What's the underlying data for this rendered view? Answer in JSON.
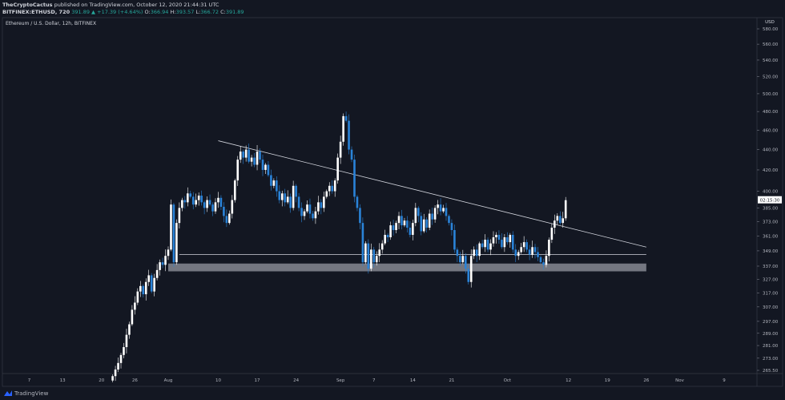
{
  "header": {
    "author": "TheCryptoCactus",
    "published": "published on TradingView.com, October 12, 2020 21:44:31 UTC",
    "symbol": "BITFINEX:ETHUSD, 720",
    "last": "391.89",
    "change": "+17.39 (+4.64%)",
    "o_label": "O:",
    "o": "366.94",
    "h_label": "H:",
    "h": "393.57",
    "l_label": "L:",
    "l": "366.72",
    "c_label": "C:",
    "c": "391.89"
  },
  "footer": {
    "brand": "TradingView"
  },
  "colors": {
    "background": "#131722",
    "up": "#ffffff",
    "down": "#2a83d8",
    "line": "#d1d4dc",
    "zone": "#9598a1"
  },
  "chart_data": {
    "type": "candlestick",
    "title": "Ethereum / U.S. Dollar, 12h, BITFINEX",
    "y_unit": "USD",
    "y_scale": "log",
    "ylim": [
      265.5,
      580
    ],
    "y_ticks": [
      "580.00",
      "560.00",
      "540.00",
      "520.00",
      "500.00",
      "480.00",
      "460.00",
      "440.00",
      "420.00",
      "400.00",
      "385.00",
      "373.00",
      "361.00",
      "349.00",
      "337.00",
      "327.00",
      "317.00",
      "307.00",
      "297.00",
      "289.00",
      "281.00",
      "273.00",
      "265.50"
    ],
    "countdown": "02:15:30",
    "x_ticks": [
      {
        "label": "7",
        "date": "2020-07-07"
      },
      {
        "label": "13",
        "date": "2020-07-13"
      },
      {
        "label": "20",
        "date": "2020-07-20"
      },
      {
        "label": "26",
        "date": "2020-07-26"
      },
      {
        "label": "Aug",
        "date": "2020-08-01"
      },
      {
        "label": "10",
        "date": "2020-08-10"
      },
      {
        "label": "17",
        "date": "2020-08-17"
      },
      {
        "label": "24",
        "date": "2020-08-24"
      },
      {
        "label": "Sep",
        "date": "2020-09-01"
      },
      {
        "label": "7",
        "date": "2020-09-07"
      },
      {
        "label": "14",
        "date": "2020-09-14"
      },
      {
        "label": "21",
        "date": "2020-09-21"
      },
      {
        "label": "Oct",
        "date": "2020-10-01"
      },
      {
        "label": "12",
        "date": "2020-10-12"
      },
      {
        "label": "19",
        "date": "2020-10-19"
      },
      {
        "label": "26",
        "date": "2020-10-26"
      },
      {
        "label": "Nov",
        "date": "2020-11-01"
      },
      {
        "label": "9",
        "date": "2020-11-09"
      }
    ],
    "first_candle": "2020-07-22",
    "interval_hours": 12,
    "closes": [
      262,
      266,
      270,
      275,
      280,
      288,
      295,
      305,
      310,
      318,
      322,
      316,
      325,
      330,
      318,
      328,
      334,
      340,
      338,
      345,
      350,
      388,
      340,
      372,
      385,
      392,
      390,
      398,
      395,
      388,
      392,
      396,
      390,
      385,
      392,
      388,
      382,
      390,
      394,
      386,
      378,
      372,
      380,
      392,
      410,
      430,
      438,
      432,
      440,
      428,
      432,
      425,
      438,
      430,
      420,
      425,
      415,
      405,
      410,
      400,
      392,
      398,
      390,
      395,
      385,
      405,
      395,
      385,
      378,
      382,
      388,
      380,
      376,
      382,
      390,
      385,
      395,
      400,
      405,
      400,
      410,
      432,
      448,
      475,
      470,
      440,
      430,
      395,
      385,
      372,
      340,
      355,
      335,
      350,
      340,
      345,
      350,
      355,
      362,
      360,
      370,
      366,
      372,
      378,
      370,
      374,
      368,
      362,
      372,
      385,
      378,
      365,
      375,
      368,
      380,
      375,
      385,
      388,
      382,
      385,
      378,
      372,
      366,
      350,
      345,
      340,
      345,
      335,
      325,
      345,
      350,
      345,
      355,
      352,
      358,
      350,
      355,
      360,
      362,
      358,
      352,
      360,
      356,
      362,
      350,
      345,
      348,
      352,
      356,
      350,
      346,
      352,
      348,
      344,
      340,
      338,
      345,
      358,
      368,
      374,
      378,
      372,
      376,
      391.89
    ],
    "drawings": [
      {
        "type": "trendline",
        "from": {
          "date": "2020-08-10",
          "price": 449
        },
        "to": {
          "date": "2020-10-26",
          "price": 352
        }
      },
      {
        "type": "horizontal",
        "from_date": "2020-08-03",
        "to_date": "2020-10-26",
        "price": 346
      },
      {
        "type": "zone",
        "from_date": "2020-08-01",
        "to_date": "2020-10-26",
        "price_low": 333,
        "price_high": 339
      }
    ]
  }
}
